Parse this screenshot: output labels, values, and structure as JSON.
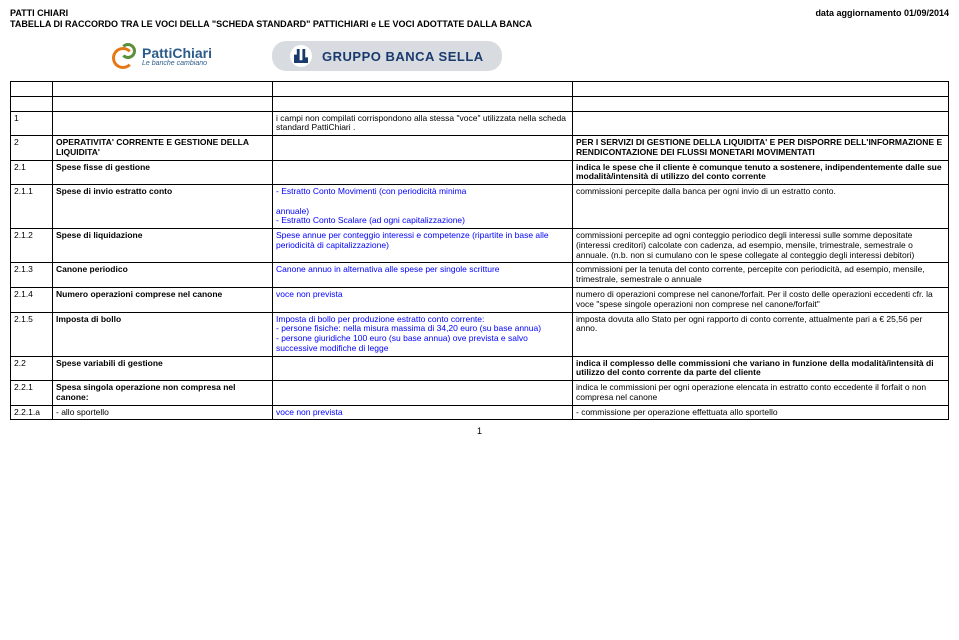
{
  "header": {
    "title": "PATTI CHIARI",
    "date": "data aggiornamento 01/09/2014",
    "subtitle": "TABELLA DI RACCORDO TRA LE VOCI DELLA \"SCHEDA STANDARD\" PATTICHIARI e LE VOCI ADOTTATE DALLA BANCA"
  },
  "logos": {
    "patti_main": "PattiChiari",
    "patti_tag": "Le banche cambiano",
    "sella": "GRUPPO BANCA SELLA"
  },
  "rows": [
    {
      "n": "1",
      "voce": "",
      "desc": "i campi non compilati corrispondono alla stessa \"voce\" utilizzata nella scheda standard PattiChiari .",
      "note": "",
      "bold_n": false,
      "bold_v": false,
      "blue": false
    },
    {
      "n": "2",
      "voce": "OPERATIVITA' CORRENTE E GESTIONE DELLA LIQUIDITA'",
      "desc": "",
      "note": "PER I SERVIZI DI  GESTIONE DELLA LIQUIDITA'  E PER DISPORRE DELL'INFORMAZIONE E RENDICONTAZIONE DEI FLUSSI MONETARI MOVIMENTATI",
      "bold_n": false,
      "bold_v": true,
      "blue": false,
      "bold_note": true
    },
    {
      "n": "2.1",
      "voce": "Spese fisse di gestione",
      "desc": "",
      "note": "indica le spese che il cliente è comunque tenuto a sostenere, indipendentemente dalle sue modalità/intensità di utilizzo del conto corrente",
      "bold_n": false,
      "bold_v": true,
      "blue": false,
      "bold_note": true
    },
    {
      "n": "2.1.1",
      "voce": "Spese di invio estratto conto",
      "desc": " - Estratto Conto Movimenti (con periodicità minima\n\nannuale)\n - Estratto Conto Scalare (ad ogni capitalizzazione)",
      "note": "commissioni percepite dalla banca per ogni invio di un estratto conto.",
      "bold_n": false,
      "bold_v": true,
      "blue": true
    },
    {
      "n": "2.1.2",
      "voce": "Spese di liquidazione",
      "desc": "Spese annue per conteggio interessi e competenze (ripartite in base alle periodicità di capitalizzazione)",
      "note": "commissioni percepite ad ogni conteggio periodico degli interessi sulle somme depositate (interessi creditori) calcolate con cadenza, ad esempio, mensile, trimestrale, semestrale o annuale. (n.b. non si cumulano con le spese collegate al conteggio degli interessi debitori)",
      "bold_n": false,
      "bold_v": true,
      "blue": true
    },
    {
      "n": "2.1.3",
      "voce": "Canone periodico",
      "desc": "Canone annuo in alternativa alle spese per singole scritture",
      "note": "commissioni per la tenuta del conto corrente, percepite con periodicità, ad esempio, mensile, trimestrale, semestrale o annuale",
      "bold_n": false,
      "bold_v": true,
      "blue": true
    },
    {
      "n": "2.1.4",
      "voce": "Numero operazioni comprese nel canone",
      "desc": "voce non prevista",
      "note": "numero di operazioni comprese nel canone/forfait.  Per il costo delle operazioni eccedenti cfr. la voce \"spese singole operazioni non comprese nel canone/forfait\"",
      "bold_n": false,
      "bold_v": true,
      "blue": true
    },
    {
      "n": "2.1.5",
      "voce": "Imposta di bollo",
      "desc": "Imposta di bollo per produzione estratto conto corrente:\n- persone fisiche: nella misura massima di 34,20 euro (su base annua)\n- persone giuridiche 100 euro (su base annua) ove prevista e salvo successive modifiche di legge",
      "note": "imposta dovuta allo Stato per ogni rapporto di conto corrente, attualmente pari a € 25,56 per anno.",
      "bold_n": false,
      "bold_v": true,
      "blue": true
    },
    {
      "n": "2.2",
      "voce": "Spese variabili di gestione",
      "desc": "",
      "note": "indica il complesso delle commissioni che variano in funzione della modalità/intensità di utilizzo del conto corrente da parte del cliente",
      "bold_n": false,
      "bold_v": true,
      "blue": false,
      "bold_note": true
    },
    {
      "n": "2.2.1",
      "voce": "Spesa singola operazione non compresa nel canone:",
      "desc": "",
      "note": "indica le commissioni per ogni operazione elencata in estratto conto eccedente il forfait o non compresa nel canone",
      "bold_n": false,
      "bold_v": true,
      "blue": false
    },
    {
      "n": "2.2.1.a",
      "voce": " - allo sportello",
      "desc": "voce non prevista",
      "note": " - commissione per operazione effettuata allo sportello",
      "bold_n": false,
      "bold_v": false,
      "blue": true
    }
  ],
  "spacer_count": 2,
  "page_number": "1"
}
